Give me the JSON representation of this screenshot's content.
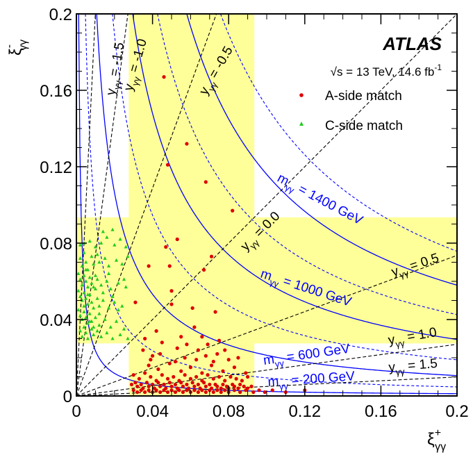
{
  "chart_data": {
    "type": "scatter",
    "experiment": "ATLAS",
    "energy_lumi": "√s = 13 TeV, 14.6 fb",
    "energy_lumi_sup": "-1",
    "xlabel_symbol": "ξ",
    "xlabel_sup": "+",
    "xlabel_sub": "γγ",
    "ylabel_symbol": "ξ",
    "ylabel_sup": "-",
    "ylabel_sub": "γγ",
    "xlim": [
      0,
      0.2
    ],
    "ylim": [
      0,
      0.2
    ],
    "x_ticks": [
      "0",
      "0.04",
      "0.08",
      "0.12",
      "0.16",
      "0.2"
    ],
    "y_ticks": [
      "0",
      "0.04",
      "0.08",
      "0.12",
      "0.16",
      "0.2"
    ],
    "acceptance_band": {
      "low": 0.0275,
      "high": 0.0935
    },
    "colors": {
      "band": "#ffff99",
      "mass_curve": "#0000ff",
      "a_side": "#dd0000",
      "c_side": "#22cc22",
      "rapidity_line": "#000000"
    },
    "mass_curves": [
      {
        "mass_gev": 200,
        "label_prefix": "m",
        "label_sub": "γγ",
        "label_text": " = 200 GeV"
      },
      {
        "mass_gev": 600,
        "label_prefix": "m",
        "label_sub": "γγ",
        "label_text": " = 600 GeV"
      },
      {
        "mass_gev": 1000,
        "label_prefix": "m",
        "label_sub": "γγ",
        "label_text": " = 1000 GeV"
      },
      {
        "mass_gev": 1400,
        "label_prefix": "m",
        "label_sub": "γγ",
        "label_text": " = 1400 GeV"
      }
    ],
    "dashed_mass_curves_gev": [
      400,
      800,
      1200,
      1600
    ],
    "rapidity_lines": [
      {
        "y": -1.5,
        "label_prefix": "y",
        "label_sub": "γγ",
        "label_text": " = -1.5"
      },
      {
        "y": -1.0,
        "label_prefix": "y",
        "label_sub": "γγ",
        "label_text": " = -1.0"
      },
      {
        "y": -0.5,
        "label_prefix": "y",
        "label_sub": "γγ",
        "label_text": " = -0.5"
      },
      {
        "y": 0.0,
        "label_prefix": "y",
        "label_sub": "γγ",
        "label_text": " = 0.0"
      },
      {
        "y": 0.5,
        "label_prefix": "y",
        "label_sub": "γγ",
        "label_text": " = 0.5"
      },
      {
        "y": 1.0,
        "label_prefix": "y",
        "label_sub": "γγ",
        "label_text": " = 1.0"
      },
      {
        "y": 1.5,
        "label_prefix": "y",
        "label_sub": "γγ",
        "label_text": " = 1.5"
      }
    ],
    "series": [
      {
        "name": "A-side match",
        "marker": "circle",
        "points": [
          [
            0.046,
            0.167
          ],
          [
            0.058,
            0.132
          ],
          [
            0.068,
            0.112
          ],
          [
            0.082,
            0.097
          ],
          [
            0.048,
            0.121
          ],
          [
            0.038,
            0.068
          ],
          [
            0.049,
            0.068
          ],
          [
            0.05,
            0.055
          ],
          [
            0.031,
            0.049
          ],
          [
            0.062,
            0.036
          ],
          [
            0.047,
            0.078
          ],
          [
            0.053,
            0.082
          ],
          [
            0.067,
            0.066
          ],
          [
            0.071,
            0.073
          ],
          [
            0.05,
            0.048
          ],
          [
            0.073,
            0.044
          ],
          [
            0.061,
            0.046
          ],
          [
            0.035,
            0.024
          ],
          [
            0.04,
            0.021
          ],
          [
            0.045,
            0.028
          ],
          [
            0.053,
            0.025
          ],
          [
            0.057,
            0.02
          ],
          [
            0.064,
            0.024
          ],
          [
            0.069,
            0.027
          ],
          [
            0.074,
            0.022
          ],
          [
            0.08,
            0.019
          ],
          [
            0.038,
            0.016
          ],
          [
            0.043,
            0.014
          ],
          [
            0.049,
            0.017
          ],
          [
            0.055,
            0.013
          ],
          [
            0.06,
            0.015
          ],
          [
            0.066,
            0.012
          ],
          [
            0.071,
            0.016
          ],
          [
            0.077,
            0.013
          ],
          [
            0.083,
            0.015
          ],
          [
            0.089,
            0.012
          ],
          [
            0.03,
            0.011
          ],
          [
            0.033,
            0.009
          ],
          [
            0.036,
            0.012
          ],
          [
            0.039,
            0.01
          ],
          [
            0.042,
            0.008
          ],
          [
            0.045,
            0.011
          ],
          [
            0.048,
            0.009
          ],
          [
            0.051,
            0.01
          ],
          [
            0.054,
            0.008
          ],
          [
            0.057,
            0.011
          ],
          [
            0.06,
            0.009
          ],
          [
            0.063,
            0.01
          ],
          [
            0.066,
            0.008
          ],
          [
            0.069,
            0.011
          ],
          [
            0.072,
            0.009
          ],
          [
            0.075,
            0.01
          ],
          [
            0.078,
            0.008
          ],
          [
            0.081,
            0.01
          ],
          [
            0.084,
            0.009
          ],
          [
            0.087,
            0.008
          ],
          [
            0.09,
            0.01
          ],
          [
            0.029,
            0.006
          ],
          [
            0.031,
            0.007
          ],
          [
            0.032,
            0.005
          ],
          [
            0.034,
            0.006
          ],
          [
            0.035,
            0.004
          ],
          [
            0.037,
            0.007
          ],
          [
            0.038,
            0.005
          ],
          [
            0.04,
            0.006
          ],
          [
            0.041,
            0.004
          ],
          [
            0.043,
            0.007
          ],
          [
            0.044,
            0.005
          ],
          [
            0.046,
            0.006
          ],
          [
            0.047,
            0.004
          ],
          [
            0.049,
            0.007
          ],
          [
            0.05,
            0.005
          ],
          [
            0.052,
            0.006
          ],
          [
            0.053,
            0.004
          ],
          [
            0.055,
            0.007
          ],
          [
            0.056,
            0.005
          ],
          [
            0.058,
            0.006
          ],
          [
            0.059,
            0.004
          ],
          [
            0.061,
            0.007
          ],
          [
            0.062,
            0.005
          ],
          [
            0.064,
            0.006
          ],
          [
            0.065,
            0.004
          ],
          [
            0.067,
            0.007
          ],
          [
            0.068,
            0.005
          ],
          [
            0.07,
            0.006
          ],
          [
            0.071,
            0.004
          ],
          [
            0.073,
            0.006
          ],
          [
            0.074,
            0.005
          ],
          [
            0.076,
            0.004
          ],
          [
            0.077,
            0.006
          ],
          [
            0.079,
            0.005
          ],
          [
            0.08,
            0.004
          ],
          [
            0.082,
            0.006
          ],
          [
            0.083,
            0.005
          ],
          [
            0.085,
            0.004
          ],
          [
            0.086,
            0.006
          ],
          [
            0.088,
            0.005
          ],
          [
            0.09,
            0.004
          ],
          [
            0.092,
            0.005
          ],
          [
            0.03,
            0.003
          ],
          [
            0.032,
            0.002
          ],
          [
            0.034,
            0.003
          ],
          [
            0.036,
            0.002
          ],
          [
            0.038,
            0.003
          ],
          [
            0.04,
            0.002
          ],
          [
            0.042,
            0.003
          ],
          [
            0.044,
            0.002
          ],
          [
            0.046,
            0.003
          ],
          [
            0.048,
            0.002
          ],
          [
            0.05,
            0.003
          ],
          [
            0.052,
            0.002
          ],
          [
            0.054,
            0.003
          ],
          [
            0.056,
            0.002
          ],
          [
            0.058,
            0.003
          ],
          [
            0.06,
            0.002
          ],
          [
            0.062,
            0.003
          ],
          [
            0.064,
            0.002
          ],
          [
            0.066,
            0.003
          ],
          [
            0.068,
            0.002
          ],
          [
            0.07,
            0.003
          ],
          [
            0.072,
            0.002
          ],
          [
            0.074,
            0.003
          ],
          [
            0.076,
            0.002
          ],
          [
            0.078,
            0.003
          ],
          [
            0.08,
            0.002
          ],
          [
            0.083,
            0.003
          ],
          [
            0.086,
            0.002
          ],
          [
            0.089,
            0.003
          ],
          [
            0.093,
            0.002
          ],
          [
            0.096,
            0.003
          ],
          [
            0.099,
            0.002
          ],
          [
            0.103,
            0.003
          ],
          [
            0.11,
            0.002
          ],
          [
            0.12,
            0.003
          ],
          [
            0.039,
            0.019
          ],
          [
            0.044,
            0.022
          ],
          [
            0.052,
            0.018
          ],
          [
            0.058,
            0.027
          ],
          [
            0.063,
            0.019
          ],
          [
            0.068,
            0.021
          ],
          [
            0.072,
            0.018
          ],
          [
            0.078,
            0.024
          ],
          [
            0.085,
            0.02
          ],
          [
            0.036,
            0.03
          ],
          [
            0.055,
            0.031
          ],
          [
            0.042,
            0.034
          ],
          [
            0.066,
            0.031
          ],
          [
            0.075,
            0.029
          ]
        ]
      },
      {
        "name": "C-side match",
        "marker": "triangle",
        "points": [
          [
            0.002,
            0.079
          ],
          [
            0.004,
            0.08
          ],
          [
            0.007,
            0.081
          ],
          [
            0.01,
            0.078
          ],
          [
            0.013,
            0.08
          ],
          [
            0.016,
            0.083
          ],
          [
            0.02,
            0.079
          ],
          [
            0.023,
            0.082
          ],
          [
            0.026,
            0.078
          ],
          [
            0.014,
            0.086
          ],
          [
            0.019,
            0.087
          ],
          [
            0.002,
            0.072
          ],
          [
            0.003,
            0.068
          ],
          [
            0.004,
            0.075
          ],
          [
            0.005,
            0.07
          ],
          [
            0.006,
            0.066
          ],
          [
            0.008,
            0.073
          ],
          [
            0.009,
            0.069
          ],
          [
            0.011,
            0.074
          ],
          [
            0.012,
            0.07
          ],
          [
            0.015,
            0.072
          ],
          [
            0.017,
            0.068
          ],
          [
            0.021,
            0.071
          ],
          [
            0.024,
            0.069
          ],
          [
            0.027,
            0.073
          ],
          [
            0.001,
            0.064
          ],
          [
            0.002,
            0.061
          ],
          [
            0.003,
            0.058
          ],
          [
            0.004,
            0.063
          ],
          [
            0.005,
            0.06
          ],
          [
            0.006,
            0.057
          ],
          [
            0.007,
            0.062
          ],
          [
            0.008,
            0.059
          ],
          [
            0.01,
            0.056
          ],
          [
            0.011,
            0.061
          ],
          [
            0.013,
            0.058
          ],
          [
            0.016,
            0.06
          ],
          [
            0.018,
            0.056
          ],
          [
            0.022,
            0.059
          ],
          [
            0.026,
            0.057
          ],
          [
            0.001,
            0.055
          ],
          [
            0.002,
            0.052
          ],
          [
            0.003,
            0.05
          ],
          [
            0.004,
            0.054
          ],
          [
            0.005,
            0.051
          ],
          [
            0.006,
            0.048
          ],
          [
            0.007,
            0.053
          ],
          [
            0.008,
            0.049
          ],
          [
            0.009,
            0.046
          ],
          [
            0.011,
            0.051
          ],
          [
            0.012,
            0.047
          ],
          [
            0.014,
            0.05
          ],
          [
            0.017,
            0.046
          ],
          [
            0.02,
            0.049
          ],
          [
            0.024,
            0.047
          ],
          [
            0.001,
            0.045
          ],
          [
            0.002,
            0.042
          ],
          [
            0.003,
            0.04
          ],
          [
            0.004,
            0.044
          ],
          [
            0.005,
            0.041
          ],
          [
            0.006,
            0.038
          ],
          [
            0.007,
            0.043
          ],
          [
            0.008,
            0.039
          ],
          [
            0.009,
            0.036
          ],
          [
            0.01,
            0.041
          ],
          [
            0.012,
            0.037
          ],
          [
            0.015,
            0.04
          ],
          [
            0.018,
            0.036
          ],
          [
            0.021,
            0.039
          ],
          [
            0.025,
            0.035
          ],
          [
            0.002,
            0.034
          ],
          [
            0.003,
            0.031
          ],
          [
            0.004,
            0.036
          ],
          [
            0.005,
            0.033
          ],
          [
            0.006,
            0.03
          ],
          [
            0.008,
            0.035
          ],
          [
            0.009,
            0.032
          ],
          [
            0.011,
            0.034
          ],
          [
            0.013,
            0.031
          ],
          [
            0.016,
            0.033
          ],
          [
            0.019,
            0.03
          ],
          [
            0.023,
            0.032
          ],
          [
            0.027,
            0.03
          ],
          [
            0.003,
            0.058
          ],
          [
            0.004,
            0.047
          ],
          [
            0.005,
            0.066
          ],
          [
            0.006,
            0.053
          ],
          [
            0.007,
            0.039
          ],
          [
            0.009,
            0.057
          ],
          [
            0.01,
            0.063
          ],
          [
            0.012,
            0.043
          ],
          [
            0.014,
            0.054
          ],
          [
            0.017,
            0.064
          ],
          [
            0.019,
            0.052
          ],
          [
            0.022,
            0.045
          ],
          [
            0.025,
            0.061
          ]
        ]
      }
    ]
  }
}
